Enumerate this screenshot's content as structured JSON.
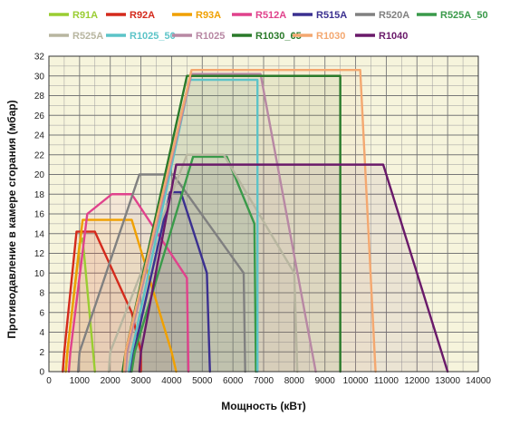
{
  "chart_data": {
    "type": "line",
    "title": "",
    "xlabel": "Мощность (кВт)",
    "ylabel": "Противодавление в камере сгорания (мбар)",
    "xlim": [
      0,
      14000
    ],
    "ylim": [
      0,
      32
    ],
    "x_ticks": [
      0,
      1000,
      2000,
      3000,
      4000,
      5000,
      6000,
      7000,
      8000,
      9000,
      10000,
      11000,
      12000,
      13000,
      14000
    ],
    "y_ticks": [
      0,
      2,
      4,
      6,
      8,
      10,
      12,
      14,
      16,
      18,
      20,
      22,
      24,
      26,
      28,
      30,
      32
    ],
    "x_tick_labels": [
      "0",
      "1000",
      "2000",
      "3000",
      "4000",
      "5000",
      "6000",
      "7000",
      "8000",
      "9000",
      "10000",
      "11000",
      "12000",
      "13000",
      "14000"
    ],
    "y_tick_labels": [
      "0",
      "2",
      "4",
      "6",
      "8",
      "10",
      "12",
      "14",
      "16",
      "18",
      "20",
      "22",
      "24",
      "26",
      "28",
      "30",
      "32"
    ],
    "grid": true,
    "plot_background": "#f6f4dc",
    "legend_placement": "top",
    "series": [
      {
        "name": "R91A",
        "color": "#9acd32",
        "x": [
          550,
          600,
          1000,
          1100,
          1500,
          1500
        ],
        "y": [
          0,
          2,
          13,
          13.5,
          0,
          0
        ]
      },
      {
        "name": "R92A",
        "color": "#d42a1c",
        "x": [
          450,
          500,
          900,
          1500,
          2700,
          3000,
          3000
        ],
        "y": [
          0,
          2,
          14.2,
          14.2,
          6,
          2,
          0
        ]
      },
      {
        "name": "R93A",
        "color": "#f0a000",
        "x": [
          550,
          600,
          1100,
          2700,
          4000,
          4150
        ],
        "y": [
          0,
          2,
          15.4,
          15.4,
          2,
          0
        ]
      },
      {
        "name": "R512A",
        "color": "#e0428c",
        "x": [
          650,
          700,
          1250,
          2050,
          2450,
          2700,
          4500,
          4550
        ],
        "y": [
          0,
          2,
          16,
          18,
          18,
          18,
          9.5,
          0
        ]
      },
      {
        "name": "R515A",
        "color": "#3b3090",
        "x": [
          2650,
          2700,
          3950,
          4300,
          5150,
          5250
        ],
        "y": [
          0,
          1,
          18.2,
          18.2,
          10,
          0
        ]
      },
      {
        "name": "R520A",
        "color": "#808080",
        "x": [
          950,
          1000,
          2950,
          4050,
          6350,
          6400
        ],
        "y": [
          0,
          2,
          20,
          20,
          10,
          0
        ]
      },
      {
        "name": "R525A_50",
        "color": "#3a9a4a",
        "x": [
          2700,
          2800,
          4700,
          5800,
          6700,
          6750
        ],
        "y": [
          0,
          2,
          21.8,
          21.8,
          15,
          0
        ]
      },
      {
        "name": "R525A",
        "color": "#b8b6a0",
        "x": [
          1950,
          2000,
          4500,
          5700,
          8000,
          8100
        ],
        "y": [
          0,
          2,
          22,
          22,
          10,
          0
        ]
      },
      {
        "name": "R1025_50",
        "color": "#5cc4c8",
        "x": [
          2600,
          2700,
          4600,
          6800,
          6800
        ],
        "y": [
          0,
          2,
          29.6,
          29.6,
          0
        ]
      },
      {
        "name": "R1025",
        "color": "#b888a4",
        "x": [
          2500,
          2550,
          4650,
          6900,
          8700
        ],
        "y": [
          0,
          2,
          30.2,
          30.2,
          0
        ]
      },
      {
        "name": "R1030_65",
        "color": "#2a7a2a",
        "x": [
          2400,
          2500,
          4500,
          9500,
          9500
        ],
        "y": [
          0,
          2,
          30,
          30,
          0
        ]
      },
      {
        "name": "R1030",
        "color": "#f4a870",
        "x": [
          2450,
          2500,
          4650,
          10150,
          10650
        ],
        "y": [
          0,
          2,
          30.6,
          30.6,
          0
        ]
      },
      {
        "name": "R1040",
        "color": "#6a1a6a",
        "x": [
          2950,
          3000,
          4150,
          10900,
          13000
        ],
        "y": [
          0,
          2,
          21,
          21,
          0
        ]
      }
    ]
  }
}
